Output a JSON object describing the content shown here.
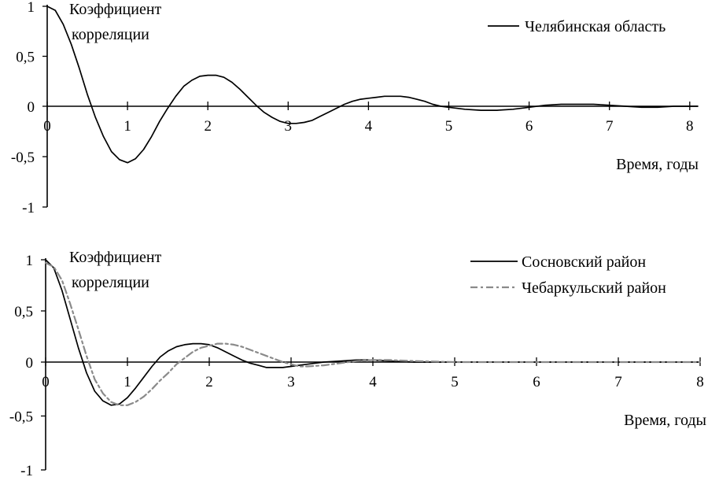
{
  "chart_data": [
    {
      "type": "line",
      "xlabel": "Время, годы",
      "ylabel": [
        "Коэффициент",
        "корреляции"
      ],
      "xlim": [
        0,
        8.1
      ],
      "ylim": [
        -1,
        1
      ],
      "x_ticks": [
        0,
        1,
        2,
        3,
        4,
        5,
        6,
        7,
        8
      ],
      "x_tick_labels": [
        "0",
        "1",
        "2",
        "3",
        "4",
        "5",
        "6",
        "7",
        "8"
      ],
      "y_ticks": [
        1,
        0.5,
        0,
        -0.5,
        -1
      ],
      "y_tick_labels": [
        "1",
        "0,5",
        "0",
        "-0,5",
        "-1"
      ],
      "legend_position": "top-right",
      "series": [
        {
          "name": "Челябинская область",
          "style": "solid",
          "color": "#000000",
          "x": [
            0,
            0.1,
            0.2,
            0.3,
            0.4,
            0.5,
            0.6,
            0.7,
            0.8,
            0.9,
            1.0,
            1.1,
            1.2,
            1.3,
            1.4,
            1.5,
            1.6,
            1.7,
            1.8,
            1.9,
            2.0,
            2.1,
            2.2,
            2.3,
            2.4,
            2.5,
            2.6,
            2.7,
            2.8,
            2.9,
            3.0,
            3.1,
            3.2,
            3.3,
            3.4,
            3.5,
            3.6,
            3.7,
            3.8,
            3.9,
            4.0,
            4.1,
            4.2,
            4.3,
            4.4,
            4.5,
            4.6,
            4.7,
            4.8,
            4.9,
            5.0,
            5.2,
            5.4,
            5.6,
            5.8,
            6.0,
            6.2,
            6.4,
            6.6,
            6.8,
            7.0,
            7.2,
            7.4,
            7.6,
            7.8,
            8.0,
            8.1
          ],
          "y": [
            1.0,
            0.96,
            0.82,
            0.62,
            0.38,
            0.12,
            -0.11,
            -0.3,
            -0.45,
            -0.53,
            -0.56,
            -0.52,
            -0.43,
            -0.3,
            -0.15,
            -0.02,
            0.1,
            0.2,
            0.26,
            0.3,
            0.31,
            0.31,
            0.29,
            0.24,
            0.17,
            0.09,
            0.01,
            -0.06,
            -0.11,
            -0.15,
            -0.17,
            -0.17,
            -0.16,
            -0.14,
            -0.1,
            -0.06,
            -0.02,
            0.02,
            0.05,
            0.07,
            0.08,
            0.09,
            0.1,
            0.1,
            0.1,
            0.09,
            0.07,
            0.05,
            0.02,
            0.0,
            -0.01,
            -0.03,
            -0.04,
            -0.04,
            -0.03,
            -0.01,
            0.01,
            0.02,
            0.02,
            0.02,
            0.01,
            0.0,
            -0.01,
            -0.01,
            0.0,
            0.0,
            0.0
          ]
        }
      ]
    },
    {
      "type": "line",
      "xlabel": "Время, годы",
      "ylabel": [
        "Коэффициент",
        "корреляции"
      ],
      "xlim": [
        0,
        8
      ],
      "ylim": [
        -1,
        1
      ],
      "x_ticks": [
        0,
        1,
        2,
        3,
        4,
        5,
        6,
        7,
        8
      ],
      "x_tick_labels": [
        "0",
        "1",
        "2",
        "3",
        "4",
        "5",
        "6",
        "7",
        "8"
      ],
      "y_ticks": [
        1,
        0.5,
        0,
        -0.5,
        -1
      ],
      "y_tick_labels": [
        "1",
        "0,5",
        "0",
        "-0,5",
        "-1"
      ],
      "legend_position": "top-right",
      "series": [
        {
          "name": "Сосновский район",
          "style": "solid",
          "color": "#000000",
          "x": [
            0,
            0.1,
            0.2,
            0.3,
            0.4,
            0.5,
            0.6,
            0.7,
            0.8,
            0.9,
            1.0,
            1.1,
            1.2,
            1.3,
            1.4,
            1.5,
            1.6,
            1.7,
            1.8,
            1.9,
            2.0,
            2.1,
            2.2,
            2.3,
            2.4,
            2.5,
            2.6,
            2.7,
            2.8,
            2.9,
            3.0,
            3.2,
            3.4,
            3.6,
            3.8,
            4.0,
            4.2,
            4.5,
            5.0,
            5.5,
            6.0,
            7.0,
            8.0
          ],
          "y": [
            1.0,
            0.92,
            0.7,
            0.42,
            0.14,
            -0.1,
            -0.27,
            -0.36,
            -0.4,
            -0.39,
            -0.33,
            -0.24,
            -0.14,
            -0.04,
            0.05,
            0.11,
            0.15,
            0.17,
            0.18,
            0.18,
            0.17,
            0.14,
            0.1,
            0.06,
            0.02,
            -0.01,
            -0.03,
            -0.05,
            -0.05,
            -0.05,
            -0.04,
            -0.02,
            0.0,
            0.01,
            0.02,
            0.02,
            0.01,
            0.0,
            0.0,
            0.0,
            0.0,
            0.0,
            0.0
          ]
        },
        {
          "name": "Чебаркульский район",
          "style": "dashed",
          "color": "#8a8a8a",
          "x": [
            0,
            0.1,
            0.2,
            0.3,
            0.4,
            0.5,
            0.6,
            0.7,
            0.8,
            0.9,
            1.0,
            1.1,
            1.2,
            1.3,
            1.4,
            1.5,
            1.6,
            1.7,
            1.8,
            1.9,
            2.0,
            2.1,
            2.2,
            2.3,
            2.4,
            2.5,
            2.6,
            2.7,
            2.8,
            2.9,
            3.0,
            3.1,
            3.2,
            3.4,
            3.6,
            3.8,
            4.0,
            4.2,
            4.5,
            5.0,
            5.5,
            6.0,
            7.0,
            8.0
          ],
          "y": [
            0.97,
            0.93,
            0.8,
            0.57,
            0.32,
            0.06,
            -0.16,
            -0.29,
            -0.37,
            -0.4,
            -0.4,
            -0.37,
            -0.32,
            -0.25,
            -0.17,
            -0.1,
            -0.02,
            0.04,
            0.1,
            0.14,
            0.16,
            0.18,
            0.18,
            0.17,
            0.15,
            0.12,
            0.09,
            0.06,
            0.03,
            0.0,
            -0.02,
            -0.04,
            -0.04,
            -0.03,
            -0.01,
            0.01,
            0.02,
            0.02,
            0.01,
            0.0,
            0.0,
            0.0,
            0.0,
            0.0
          ]
        }
      ]
    }
  ]
}
